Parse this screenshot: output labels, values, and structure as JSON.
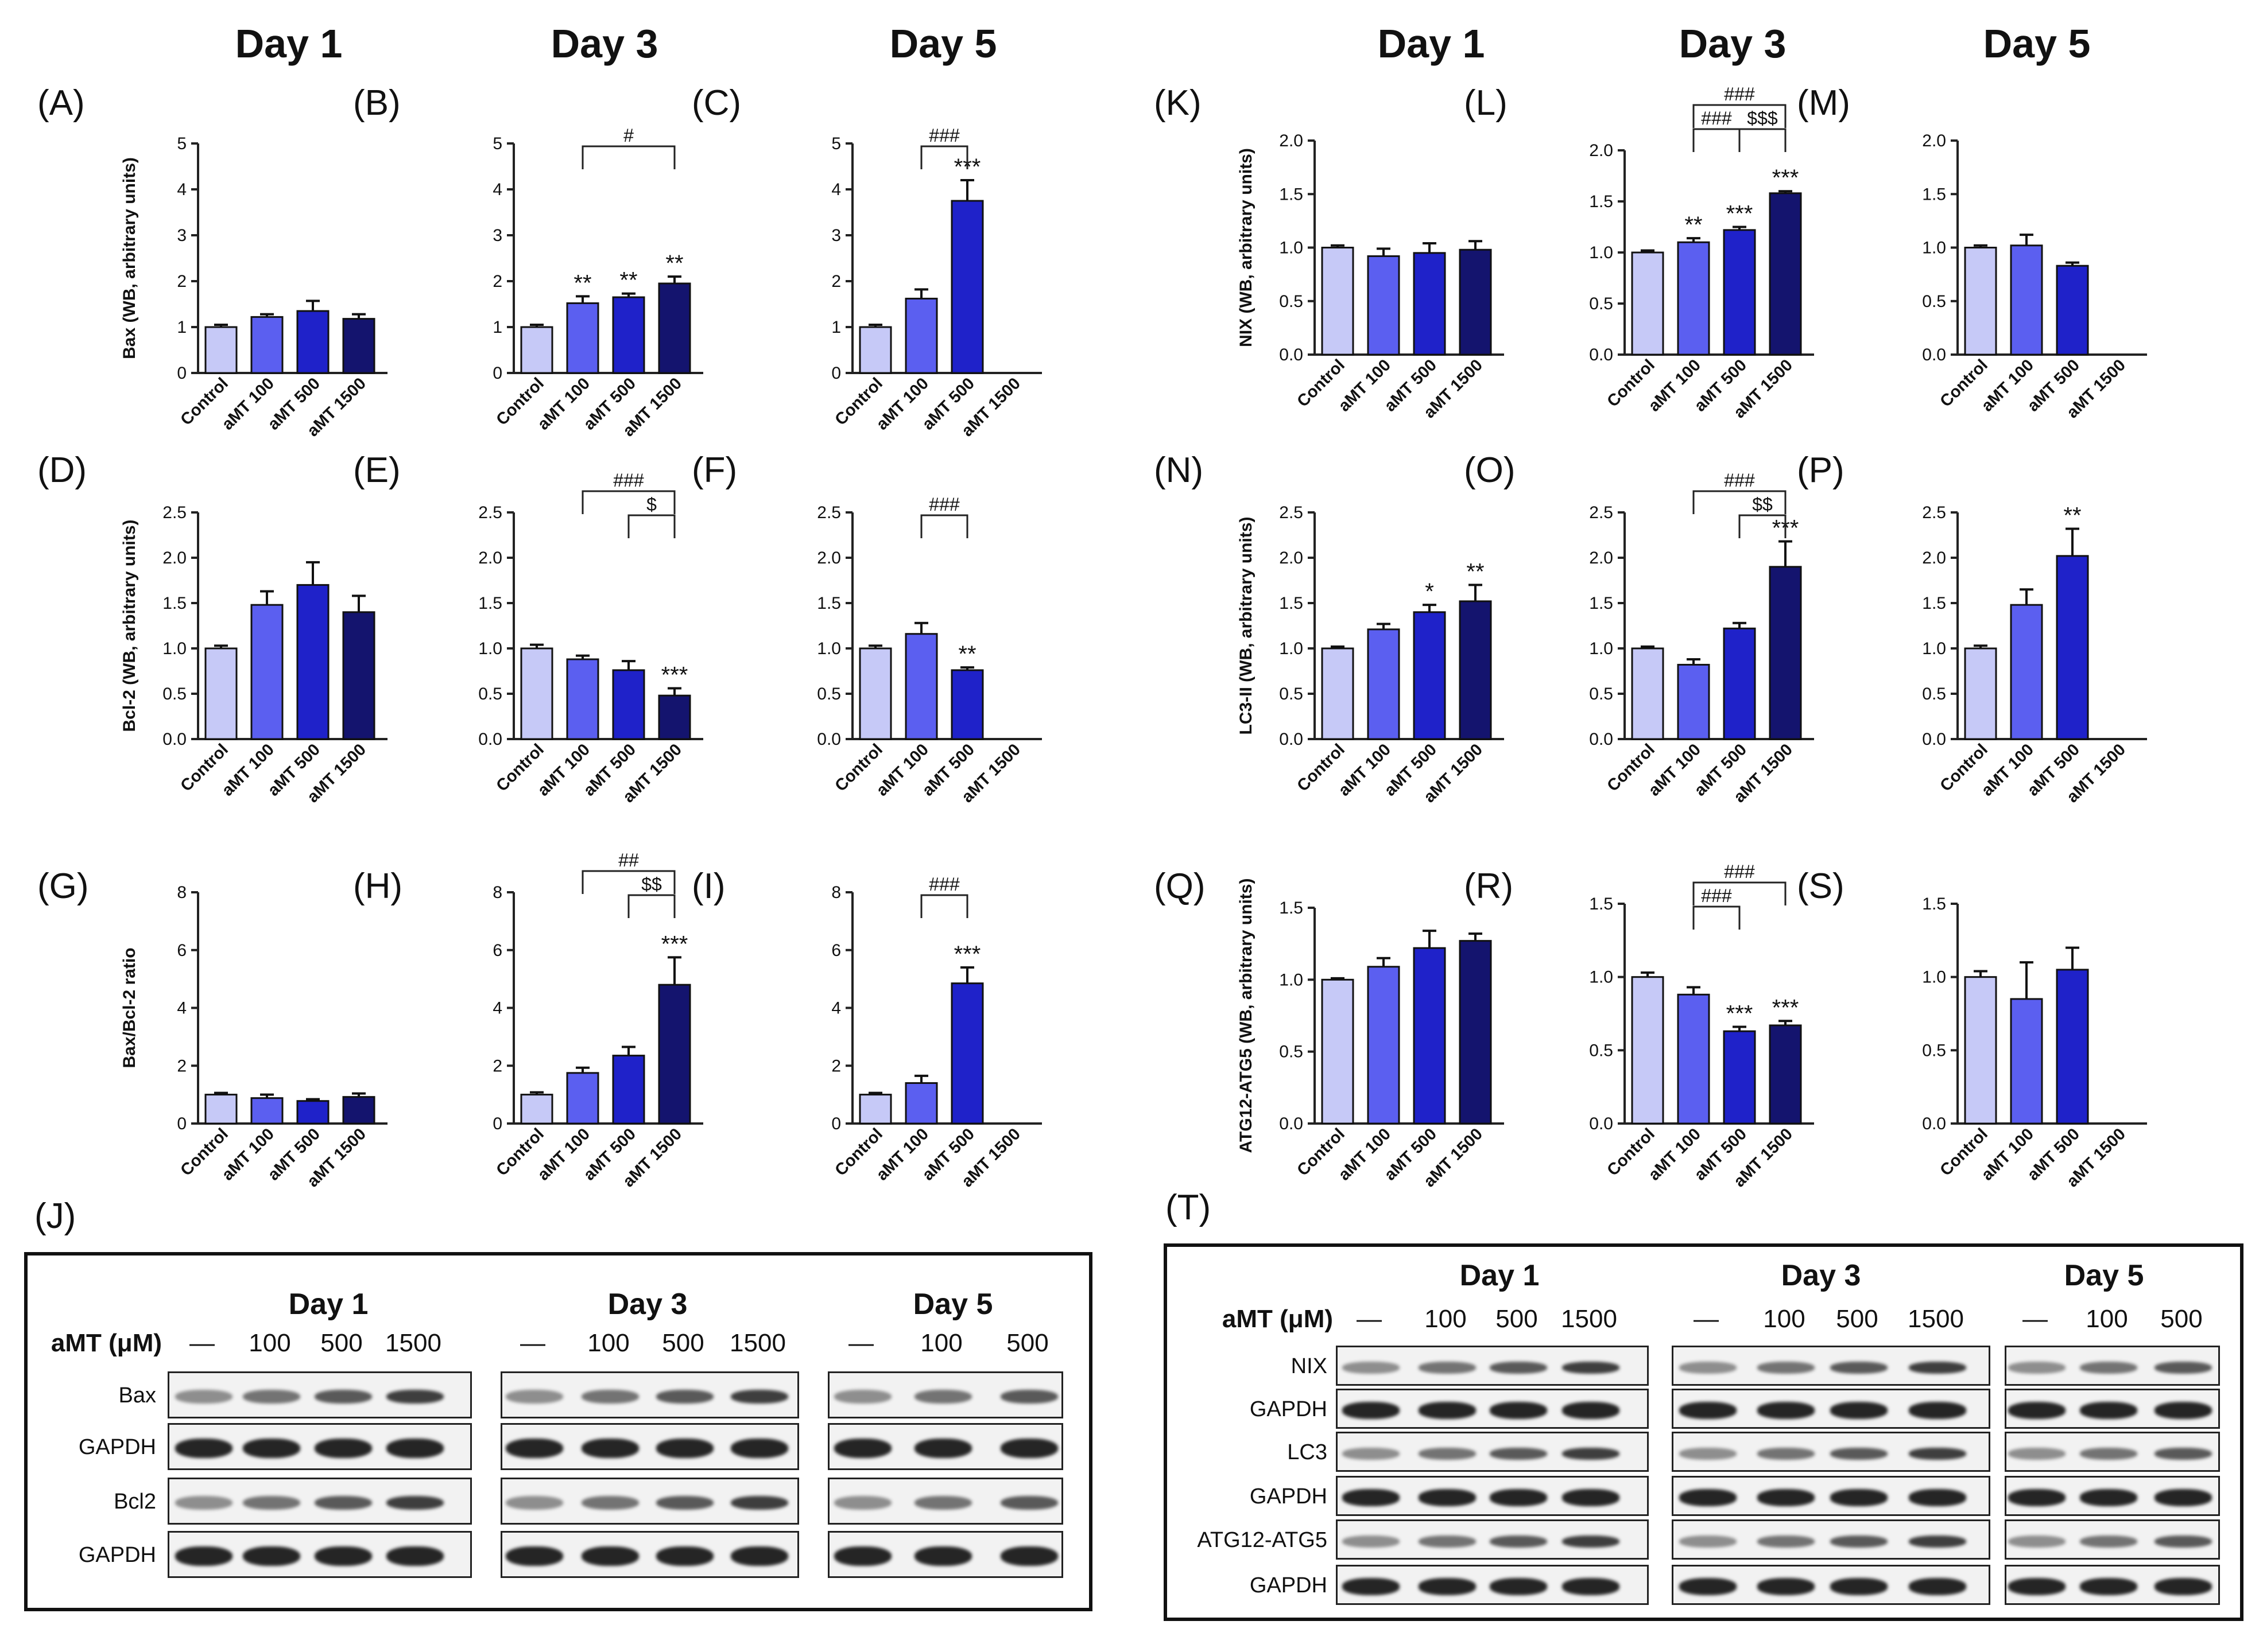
{
  "headers": {
    "left": [
      "Day 1",
      "Day 3",
      "Day 5"
    ],
    "right": [
      "Day 1",
      "Day 3",
      "Day 5"
    ]
  },
  "categories": [
    "Control",
    "aMT 100",
    "aMT 500",
    "aMT 1500"
  ],
  "colors": [
    "#c6c9f7",
    "#5b5ff0",
    "#1f22c9",
    "#14146e"
  ],
  "chart_data": [
    {
      "id": "A",
      "label": "(A)",
      "type": "bar",
      "ylabel": "Bax (WB, arbitrary units)",
      "ylim": [
        0,
        5
      ],
      "ticks": [
        "0",
        "1",
        "2",
        "3",
        "4",
        "5"
      ],
      "values": [
        1.0,
        1.22,
        1.35,
        1.18
      ],
      "errors": [
        0.05,
        0.06,
        0.22,
        0.1
      ],
      "stars": [
        "",
        "",
        "",
        ""
      ],
      "brackets": []
    },
    {
      "id": "B",
      "label": "(B)",
      "type": "bar",
      "ylabel": "",
      "ylim": [
        0,
        5
      ],
      "ticks": [
        "0",
        "1",
        "2",
        "3",
        "4",
        "5"
      ],
      "values": [
        1.0,
        1.52,
        1.65,
        1.95
      ],
      "errors": [
        0.05,
        0.15,
        0.08,
        0.15
      ],
      "stars": [
        "",
        "**",
        "**",
        "**"
      ],
      "brackets": [
        {
          "from": 1,
          "to": 3,
          "level": 0,
          "text": "#"
        }
      ]
    },
    {
      "id": "C",
      "label": "(C)",
      "type": "bar",
      "ylabel": "",
      "ylim": [
        0,
        5
      ],
      "ticks": [
        "0",
        "1",
        "2",
        "3",
        "4",
        "5"
      ],
      "values": [
        1.0,
        1.62,
        3.75,
        null
      ],
      "errors": [
        0.05,
        0.2,
        0.45,
        0
      ],
      "stars": [
        "",
        "",
        "***",
        ""
      ],
      "brackets": [
        {
          "from": 1,
          "to": 2,
          "level": 0,
          "text": "###"
        }
      ]
    },
    {
      "id": "D",
      "label": "(D)",
      "type": "bar",
      "ylabel": "Bcl-2 (WB, arbitrary units)",
      "ylim": [
        0,
        2.5
      ],
      "ticks": [
        "0.0",
        "0.5",
        "1.0",
        "1.5",
        "2.0",
        "2.5"
      ],
      "values": [
        1.0,
        1.48,
        1.7,
        1.4
      ],
      "errors": [
        0.03,
        0.15,
        0.25,
        0.18
      ],
      "stars": [
        "",
        "",
        "",
        ""
      ],
      "brackets": []
    },
    {
      "id": "E",
      "label": "(E)",
      "type": "bar",
      "ylabel": "",
      "ylim": [
        0,
        2.5
      ],
      "ticks": [
        "0.0",
        "0.5",
        "1.0",
        "1.5",
        "2.0",
        "2.5"
      ],
      "values": [
        1.0,
        0.88,
        0.76,
        0.48
      ],
      "errors": [
        0.04,
        0.04,
        0.1,
        0.08
      ],
      "stars": [
        "",
        "",
        "",
        "***"
      ],
      "brackets": [
        {
          "from": 1,
          "to": 3,
          "level": 1,
          "text": "###"
        },
        {
          "from": 2,
          "to": 3,
          "level": 0,
          "text": "$"
        }
      ]
    },
    {
      "id": "F",
      "label": "(F)",
      "type": "bar",
      "ylabel": "",
      "ylim": [
        0,
        2.5
      ],
      "ticks": [
        "0.0",
        "0.5",
        "1.0",
        "1.5",
        "2.0",
        "2.5"
      ],
      "values": [
        1.0,
        1.16,
        0.76,
        null
      ],
      "errors": [
        0.03,
        0.12,
        0.03,
        0
      ],
      "stars": [
        "",
        "",
        "**",
        ""
      ],
      "brackets": [
        {
          "from": 1,
          "to": 2,
          "level": 0,
          "text": "###"
        }
      ]
    },
    {
      "id": "G",
      "label": "(G)",
      "type": "bar",
      "ylabel": "Bax/Bcl-2 ratio",
      "ylim": [
        0,
        8
      ],
      "ticks": [
        "0",
        "2",
        "4",
        "6",
        "8"
      ],
      "values": [
        1.0,
        0.88,
        0.78,
        0.92
      ],
      "errors": [
        0.06,
        0.12,
        0.06,
        0.12
      ],
      "stars": [
        "",
        "",
        "",
        ""
      ],
      "brackets": []
    },
    {
      "id": "H",
      "label": "(H)",
      "type": "bar",
      "ylabel": "",
      "ylim": [
        0,
        8
      ],
      "ticks": [
        "0",
        "2",
        "4",
        "6",
        "8"
      ],
      "values": [
        1.0,
        1.75,
        2.35,
        4.8
      ],
      "errors": [
        0.08,
        0.18,
        0.3,
        0.95
      ],
      "stars": [
        "",
        "",
        "",
        "***"
      ],
      "brackets": [
        {
          "from": 1,
          "to": 3,
          "level": 1,
          "text": "##"
        },
        {
          "from": 2,
          "to": 3,
          "level": 0,
          "text": "$$"
        }
      ]
    },
    {
      "id": "I",
      "label": "(I)",
      "type": "bar",
      "ylabel": "",
      "ylim": [
        0,
        8
      ],
      "ticks": [
        "0",
        "2",
        "4",
        "6",
        "8"
      ],
      "values": [
        1.0,
        1.4,
        4.85,
        null
      ],
      "errors": [
        0.06,
        0.25,
        0.55,
        0
      ],
      "stars": [
        "",
        "",
        "***",
        ""
      ],
      "brackets": [
        {
          "from": 1,
          "to": 2,
          "level": 0,
          "text": "###"
        }
      ]
    },
    {
      "id": "K",
      "label": "(K)",
      "type": "bar",
      "ylabel": "NIX (WB, arbitrary units)",
      "ylim": [
        0,
        2.0
      ],
      "ticks": [
        "0.0",
        "0.5",
        "1.0",
        "1.5",
        "2.0"
      ],
      "values": [
        1.0,
        0.92,
        0.95,
        0.98
      ],
      "errors": [
        0.02,
        0.07,
        0.09,
        0.08
      ],
      "stars": [
        "",
        "",
        "",
        ""
      ],
      "brackets": []
    },
    {
      "id": "L",
      "label": "(L)",
      "type": "bar",
      "ylabel": "",
      "ylim": [
        0,
        2.0
      ],
      "ticks": [
        "0.0",
        "0.5",
        "1.0",
        "1.5",
        "2.0"
      ],
      "values": [
        1.0,
        1.1,
        1.22,
        1.58
      ],
      "errors": [
        0.02,
        0.04,
        0.03,
        0.02
      ],
      "stars": [
        "",
        "**",
        "***",
        "***"
      ],
      "brackets": [
        {
          "from": 1,
          "to": 3,
          "level": 2,
          "text": "###"
        },
        {
          "from": 1,
          "to": 2,
          "level": 1,
          "text": "###"
        },
        {
          "from": 2,
          "to": 3,
          "level": 1,
          "text": "$$$"
        }
      ]
    },
    {
      "id": "M",
      "label": "(M)",
      "type": "bar",
      "ylabel": "",
      "ylim": [
        0,
        2.0
      ],
      "ticks": [
        "0.0",
        "0.5",
        "1.0",
        "1.5",
        "2.0"
      ],
      "values": [
        1.0,
        1.02,
        0.83,
        null
      ],
      "errors": [
        0.02,
        0.1,
        0.03,
        0
      ],
      "stars": [
        "",
        "",
        "",
        ""
      ],
      "brackets": []
    },
    {
      "id": "N",
      "label": "(N)",
      "type": "bar",
      "ylabel": "LC3-II (WB, arbitrary units)",
      "ylim": [
        0,
        2.5
      ],
      "ticks": [
        "0.0",
        "0.5",
        "1.0",
        "1.5",
        "2.0",
        "2.5"
      ],
      "values": [
        1.0,
        1.21,
        1.4,
        1.52
      ],
      "errors": [
        0.02,
        0.06,
        0.08,
        0.18
      ],
      "stars": [
        "",
        "",
        "*",
        "**"
      ],
      "brackets": []
    },
    {
      "id": "O",
      "label": "(O)",
      "type": "bar",
      "ylabel": "",
      "ylim": [
        0,
        2.5
      ],
      "ticks": [
        "0.0",
        "0.5",
        "1.0",
        "1.5",
        "2.0",
        "2.5"
      ],
      "values": [
        1.0,
        0.82,
        1.22,
        1.9
      ],
      "errors": [
        0.02,
        0.06,
        0.06,
        0.28
      ],
      "stars": [
        "",
        "",
        "",
        "***"
      ],
      "brackets": [
        {
          "from": 1,
          "to": 3,
          "level": 1,
          "text": "###"
        },
        {
          "from": 2,
          "to": 3,
          "level": 0,
          "text": "$$"
        }
      ]
    },
    {
      "id": "P",
      "label": "(P)",
      "type": "bar",
      "ylabel": "",
      "ylim": [
        0,
        2.5
      ],
      "ticks": [
        "0.0",
        "0.5",
        "1.0",
        "1.5",
        "2.0",
        "2.5"
      ],
      "values": [
        1.0,
        1.48,
        2.02,
        null
      ],
      "errors": [
        0.03,
        0.17,
        0.3,
        0
      ],
      "stars": [
        "",
        "",
        "**",
        ""
      ],
      "brackets": []
    },
    {
      "id": "Q",
      "label": "(Q)",
      "type": "bar",
      "ylabel": "ATG12-ATG5 (WB, arbitrary units)",
      "ylim": [
        0,
        1.5
      ],
      "ticks": [
        "0.0",
        "0.5",
        "1.0",
        "1.5"
      ],
      "values": [
        1.0,
        1.09,
        1.22,
        1.27
      ],
      "errors": [
        0.01,
        0.06,
        0.12,
        0.05
      ],
      "stars": [
        "",
        "",
        "",
        ""
      ],
      "brackets": []
    },
    {
      "id": "R",
      "label": "(R)",
      "type": "bar",
      "ylabel": "",
      "ylim": [
        0,
        1.5
      ],
      "ticks": [
        "0.0",
        "0.5",
        "1.0",
        "1.5"
      ],
      "values": [
        1.0,
        0.88,
        0.63,
        0.67
      ],
      "errors": [
        0.03,
        0.05,
        0.03,
        0.03
      ],
      "stars": [
        "",
        "",
        "***",
        "***"
      ],
      "brackets": [
        {
          "from": 1,
          "to": 3,
          "level": 1,
          "text": "###"
        },
        {
          "from": 1,
          "to": 2,
          "level": 0,
          "text": "###"
        }
      ]
    },
    {
      "id": "S",
      "label": "(S)",
      "type": "bar",
      "ylabel": "",
      "ylim": [
        0,
        1.5
      ],
      "ticks": [
        "0.0",
        "0.5",
        "1.0",
        "1.5"
      ],
      "values": [
        1.0,
        0.85,
        1.05,
        null
      ],
      "errors": [
        0.04,
        0.25,
        0.15,
        0
      ],
      "stars": [
        "",
        "",
        "",
        ""
      ],
      "brackets": []
    }
  ],
  "blots": {
    "J": {
      "label": "(J)",
      "treatment_label": "aMT (μM)",
      "days": [
        {
          "title": "Day 1",
          "lanes": [
            "—",
            "100",
            "500",
            "1500"
          ]
        },
        {
          "title": "Day 3",
          "lanes": [
            "—",
            "100",
            "500",
            "1500"
          ]
        },
        {
          "title": "Day 5",
          "lanes": [
            "—",
            "100",
            "500"
          ]
        }
      ],
      "rows": [
        "Bax",
        "GAPDH",
        "Bcl2",
        "GAPDH"
      ]
    },
    "T": {
      "label": "(T)",
      "treatment_label": "aMT (μM)",
      "days": [
        {
          "title": "Day 1",
          "lanes": [
            "—",
            "100",
            "500",
            "1500"
          ]
        },
        {
          "title": "Day 3",
          "lanes": [
            "—",
            "100",
            "500",
            "1500"
          ]
        },
        {
          "title": "Day 5",
          "lanes": [
            "—",
            "100",
            "500"
          ]
        }
      ],
      "rows": [
        "NIX",
        "GAPDH",
        "LC3",
        "GAPDH",
        "ATG12-ATG5",
        "GAPDH"
      ]
    }
  }
}
